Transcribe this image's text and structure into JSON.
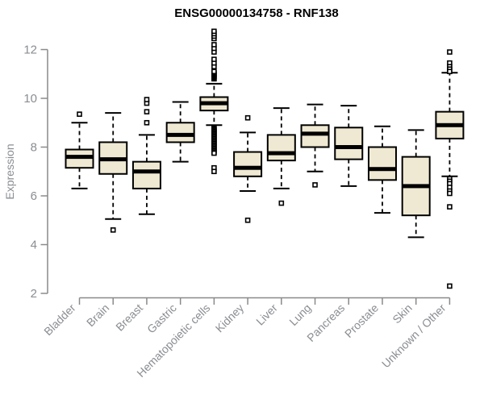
{
  "chart_data": {
    "type": "boxplot",
    "title": "ENSG00000134758 - RNF138",
    "xlabel": "",
    "ylabel": "Expression",
    "ylim": [
      2,
      12
    ],
    "y_ticks": [
      2,
      4,
      6,
      8,
      10,
      12
    ],
    "grid": false,
    "legend": "none",
    "categories": [
      "Bladder",
      "Brain",
      "Breast",
      "Gastric",
      "Hematopoietic cells",
      "Kidney",
      "Liver",
      "Lung",
      "Pancreas",
      "Prostate",
      "Skin",
      "Unknown / Other"
    ],
    "series": [
      {
        "name": "Bladder",
        "whisker_low": 6.3,
        "q1": 7.15,
        "median": 7.6,
        "q3": 7.9,
        "whisker_high": 9.0,
        "outliers": [
          9.35
        ]
      },
      {
        "name": "Brain",
        "whisker_low": 5.05,
        "q1": 6.9,
        "median": 7.5,
        "q3": 8.2,
        "whisker_high": 9.4,
        "outliers": [
          4.6
        ]
      },
      {
        "name": "Breast",
        "whisker_low": 5.25,
        "q1": 6.3,
        "median": 7.0,
        "q3": 7.4,
        "whisker_high": 8.5,
        "outliers": [
          9.0,
          9.45,
          9.8,
          9.95
        ]
      },
      {
        "name": "Gastric",
        "whisker_low": 7.4,
        "q1": 8.2,
        "median": 8.5,
        "q3": 9.0,
        "whisker_high": 9.85,
        "outliers": []
      },
      {
        "name": "Hematopoietic cells",
        "whisker_low": 8.9,
        "q1": 9.5,
        "median": 9.8,
        "q3": 10.05,
        "whisker_high": 10.6,
        "outliers": [
          10.8,
          10.85,
          10.9,
          10.95,
          11.0,
          11.05,
          11.1,
          11.3,
          11.45,
          11.6,
          11.9,
          12.05,
          12.2,
          12.45,
          12.55,
          12.65,
          12.75,
          8.8,
          8.75,
          8.7,
          8.65,
          8.6,
          8.55,
          8.5,
          8.45,
          8.4,
          8.35,
          8.3,
          8.25,
          8.2,
          8.15,
          8.1,
          8.05,
          8.0,
          7.95,
          7.9,
          7.85,
          7.8,
          7.75,
          7.15,
          7.0
        ]
      },
      {
        "name": "Kidney",
        "whisker_low": 6.2,
        "q1": 6.8,
        "median": 7.15,
        "q3": 7.8,
        "whisker_high": 8.6,
        "outliers": [
          9.2,
          5.0
        ]
      },
      {
        "name": "Liver",
        "whisker_low": 6.3,
        "q1": 7.45,
        "median": 7.75,
        "q3": 8.5,
        "whisker_high": 9.6,
        "outliers": [
          5.7
        ]
      },
      {
        "name": "Lung",
        "whisker_low": 7.0,
        "q1": 8.0,
        "median": 8.55,
        "q3": 8.9,
        "whisker_high": 9.75,
        "outliers": [
          6.45
        ]
      },
      {
        "name": "Pancreas",
        "whisker_low": 6.4,
        "q1": 7.5,
        "median": 8.0,
        "q3": 8.8,
        "whisker_high": 9.7,
        "outliers": []
      },
      {
        "name": "Prostate",
        "whisker_low": 5.3,
        "q1": 6.65,
        "median": 7.1,
        "q3": 8.0,
        "whisker_high": 8.85,
        "outliers": []
      },
      {
        "name": "Skin",
        "whisker_low": 4.3,
        "q1": 5.2,
        "median": 6.4,
        "q3": 7.6,
        "whisker_high": 8.7,
        "outliers": []
      },
      {
        "name": "Unknown / Other",
        "whisker_low": 6.8,
        "q1": 8.35,
        "median": 8.9,
        "q3": 9.45,
        "whisker_high": 11.05,
        "outliers": [
          11.9,
          11.45,
          11.3,
          11.2,
          11.1,
          6.7,
          6.6,
          6.5,
          6.35,
          6.2,
          6.1,
          5.55,
          2.3
        ]
      }
    ]
  },
  "colors": {
    "background": "#ffffff",
    "box_fill": "#efe9d3",
    "box_border": "#000000",
    "median": "#000000",
    "whisker": "#000000",
    "outlier_fill": "#ffffff",
    "outlier_border": "#000000",
    "axis_line": "#8a8a8a",
    "tick_label": "#8a8d92",
    "title": "#000000"
  }
}
